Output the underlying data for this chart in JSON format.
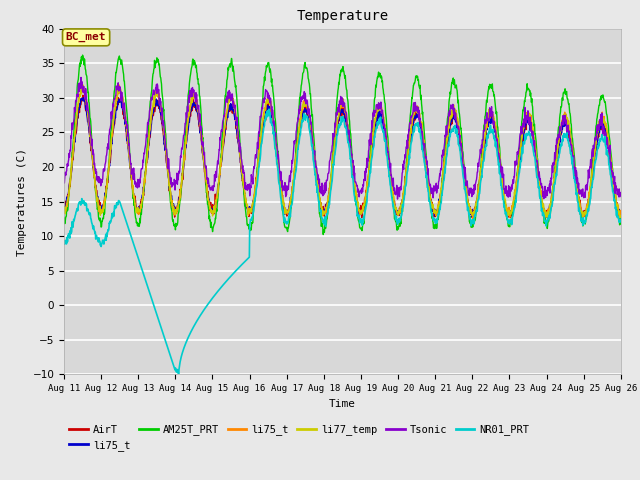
{
  "title": "Temperature",
  "ylabel": "Temperatures (C)",
  "xlabel": "Time",
  "ylim": [
    -10,
    40
  ],
  "background_color": "#e8e8e8",
  "plot_bg_color": "#d8d8d8",
  "annotation_text": "BC_met",
  "annotation_bg": "#ffffa0",
  "annotation_border": "#8b8b00",
  "annotation_text_color": "#8b0000",
  "series": [
    {
      "label": "AirT",
      "color": "#cc0000"
    },
    {
      "label": "li75_t",
      "color": "#0000cc"
    },
    {
      "label": "AM25T_PRT",
      "color": "#00cc00"
    },
    {
      "label": "li75_t",
      "color": "#ff8800"
    },
    {
      "label": "li77_temp",
      "color": "#cccc00"
    },
    {
      "label": "Tsonic",
      "color": "#8800cc"
    },
    {
      "label": "NR01_PRT",
      "color": "#00cccc"
    }
  ],
  "x_ticks": [
    11,
    12,
    13,
    14,
    15,
    16,
    17,
    18,
    19,
    20,
    21,
    22,
    23,
    24,
    25,
    26
  ],
  "x_tick_labels": [
    "Aug 11",
    "Aug 12",
    "Aug 13",
    "Aug 14",
    "Aug 15",
    "Aug 16",
    "Aug 17",
    "Aug 18",
    "Aug 19",
    "Aug 20",
    "Aug 21",
    "Aug 22",
    "Aug 23",
    "Aug 24",
    "Aug 25",
    "Aug 26"
  ],
  "yticks": [
    -10,
    -5,
    0,
    5,
    10,
    15,
    20,
    25,
    30,
    35,
    40
  ]
}
